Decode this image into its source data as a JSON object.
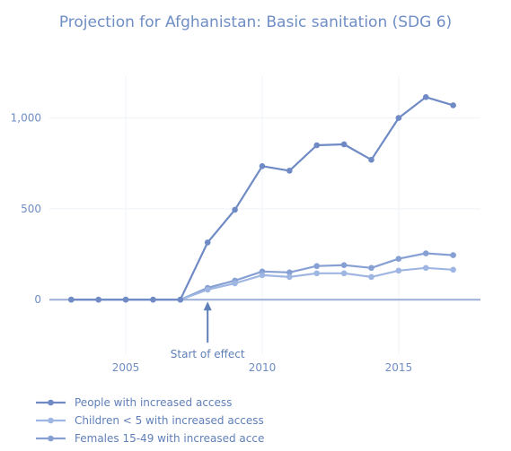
{
  "chart_data": {
    "type": "line",
    "title": "Projection for Afghanistan: Basic sanitation (SDG 6)",
    "xlabel": "",
    "ylabel": "",
    "x": [
      2003,
      2004,
      2005,
      2006,
      2007,
      2008,
      2009,
      2010,
      2011,
      2012,
      2013,
      2014,
      2015,
      2016,
      2017
    ],
    "xlim": [
      2002.2,
      2018.0
    ],
    "ylim": [
      -300,
      1230
    ],
    "x_ticks": [
      2005,
      2010,
      2015
    ],
    "x_tick_labels": [
      "2005",
      "2010",
      "2015"
    ],
    "y_ticks": [
      0,
      500,
      1000
    ],
    "y_tick_labels": [
      "0",
      "500",
      "1,000"
    ],
    "grid": true,
    "legend_position": "bottom-left",
    "series": [
      {
        "name": "People with increased access",
        "color": "#6f8ac4",
        "values": [
          0,
          0,
          0,
          0,
          0,
          315,
          495,
          735,
          710,
          850,
          855,
          770,
          1000,
          1115,
          1070
        ]
      },
      {
        "name": "Children < 5 with increased access",
        "color": "#9fb6e2",
        "values": [
          0,
          0,
          0,
          0,
          0,
          55,
          90,
          135,
          125,
          145,
          145,
          125,
          160,
          175,
          165
        ]
      },
      {
        "name": "Females 15-49 with increased acce",
        "color": "#87a0d4",
        "values": [
          0,
          0,
          0,
          0,
          0,
          65,
          105,
          155,
          150,
          185,
          190,
          175,
          225,
          255,
          245
        ]
      }
    ],
    "annotations": [
      {
        "text": "Start of effect",
        "x": 2008,
        "y": 0
      }
    ]
  }
}
